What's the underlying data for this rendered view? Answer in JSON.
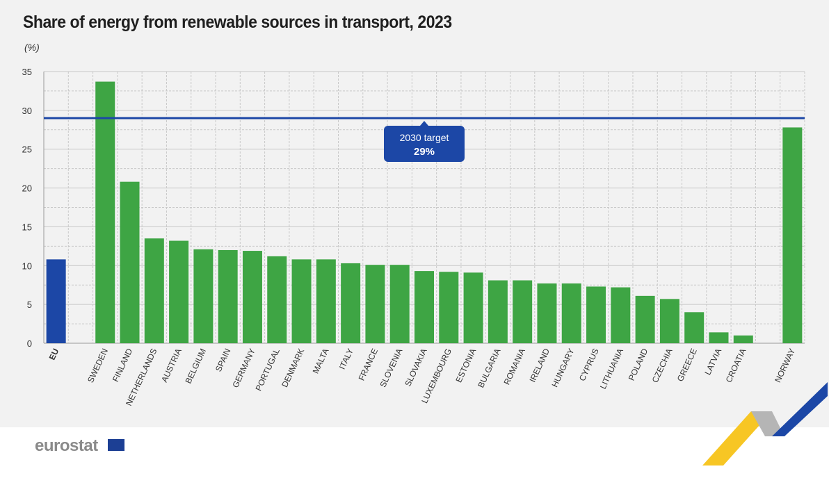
{
  "title": "Share of energy from renewable sources in transport, 2023",
  "unit": "(%)",
  "logo": "eurostat",
  "colors": {
    "eu": "#1c47a6",
    "country": "#3ea544",
    "target": "#1c47a6",
    "grid": "#c8c8c8"
  },
  "chart_data": {
    "type": "bar",
    "title": "Share of energy from renewable sources in transport, 2023",
    "ylabel": "(%)",
    "ylim": [
      0,
      35
    ],
    "yticks": [
      0,
      5,
      10,
      15,
      20,
      25,
      30,
      35
    ],
    "categories": [
      "EU",
      "SWEDEN",
      "FINLAND",
      "NETHERLANDS",
      "AUSTRIA",
      "BELGIUM",
      "SPAIN",
      "GERMANY",
      "PORTUGAL",
      "DENMARK",
      "MALTA",
      "ITALY",
      "FRANCE",
      "SLOVENIA",
      "SLOVAKIA",
      "LUXEMBOURG",
      "ESTONIA",
      "BULGARIA",
      "ROMANIA",
      "IRELAND",
      "HUNGARY",
      "CYPRUS",
      "LITHUANIA",
      "POLAND",
      "CZECHIA",
      "GREECE",
      "LATVIA",
      "CROATIA",
      "NORWAY"
    ],
    "values": [
      10.8,
      33.7,
      20.8,
      13.5,
      13.2,
      12.1,
      12.0,
      11.9,
      11.2,
      10.8,
      10.8,
      10.3,
      10.1,
      10.1,
      9.3,
      9.2,
      9.1,
      8.1,
      8.1,
      7.7,
      7.7,
      7.3,
      7.2,
      6.1,
      5.7,
      4.0,
      1.4,
      1.0,
      27.8
    ],
    "target": {
      "value": 29,
      "label": "2030 target",
      "value_label": "29%"
    }
  }
}
